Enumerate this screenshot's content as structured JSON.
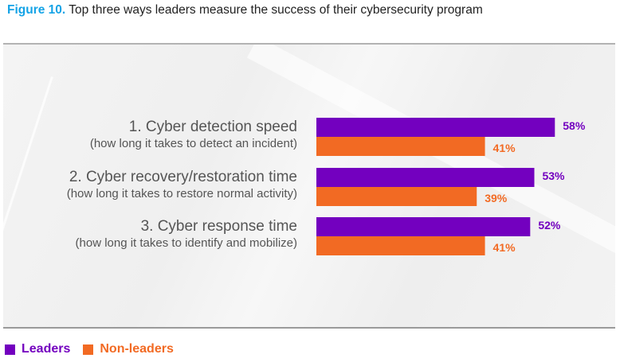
{
  "header": {
    "figure_label": "Figure 10.",
    "title": "Top three ways leaders measure the success of their cybersecurity program"
  },
  "colors": {
    "leaders": "#7300bf",
    "non_leaders": "#f26a23",
    "figure_label": "#14a3e6"
  },
  "chart_data": {
    "type": "bar",
    "orientation": "horizontal",
    "title": "Top three ways leaders measure the success of their cybersecurity program",
    "categories": [
      {
        "main": "1. Cyber detection speed",
        "sub": "(how long it takes to detect an incident)"
      },
      {
        "main": "2. Cyber recovery/restoration time",
        "sub": "(how long it takes to restore normal activity)"
      },
      {
        "main": "3. Cyber response time",
        "sub": "(how long it takes to identify and mobilize)"
      }
    ],
    "series": [
      {
        "name": "Leaders",
        "values": [
          58,
          53,
          52
        ],
        "labels": [
          "58%",
          "53%",
          "52%"
        ]
      },
      {
        "name": "Non-leaders",
        "values": [
          41,
          39,
          41
        ],
        "labels": [
          "41%",
          "39%",
          "41%"
        ]
      }
    ],
    "xlim": [
      0,
      100
    ],
    "grid": false,
    "legend_position": "bottom-left"
  }
}
